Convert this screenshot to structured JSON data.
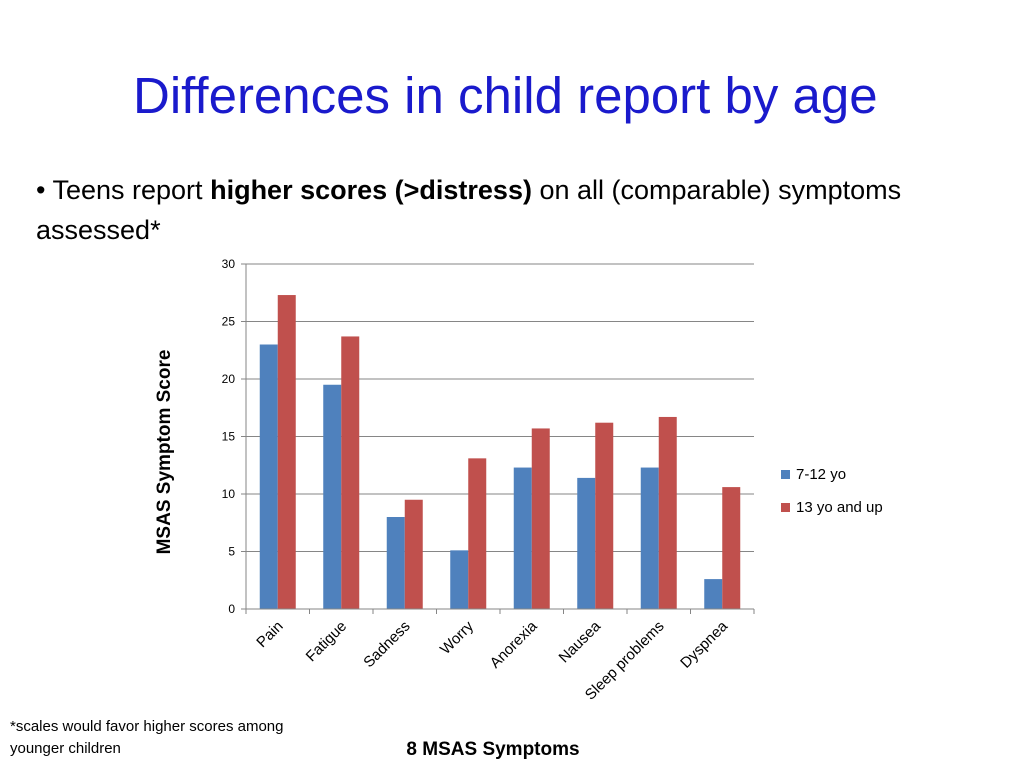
{
  "slide": {
    "title": "Differences in child report by age",
    "bullet": {
      "marker": "•",
      "prefix": "Teens report",
      "bold": "higher scores (>distress)",
      "suffix": "on all (comparable) symptoms assessed*"
    },
    "footnote_line1": "*scales would favor higher scores among",
    "footnote_line2": "younger  children"
  },
  "chart_data": {
    "type": "bar",
    "title": "",
    "xlabel": "8 MSAS Symptoms",
    "ylabel": "MSAS Symptom Score",
    "ylim": [
      0,
      30
    ],
    "yticks": [
      0,
      5,
      10,
      15,
      20,
      25,
      30
    ],
    "grid": true,
    "legend_position": "right",
    "categories": [
      "Pain",
      "Fatigue",
      "Sadness",
      "Worry",
      "Anorexia",
      "Nausea",
      "Sleep problems",
      "Dyspnea"
    ],
    "series": [
      {
        "name": "7-12 yo",
        "color": "#4f81bd",
        "values": [
          23.0,
          19.5,
          8.0,
          5.1,
          12.3,
          11.4,
          12.3,
          2.6
        ]
      },
      {
        "name": "13 yo and up",
        "color": "#c0504d",
        "values": [
          27.3,
          23.7,
          9.5,
          13.1,
          15.7,
          16.2,
          16.7,
          10.6
        ]
      }
    ]
  }
}
